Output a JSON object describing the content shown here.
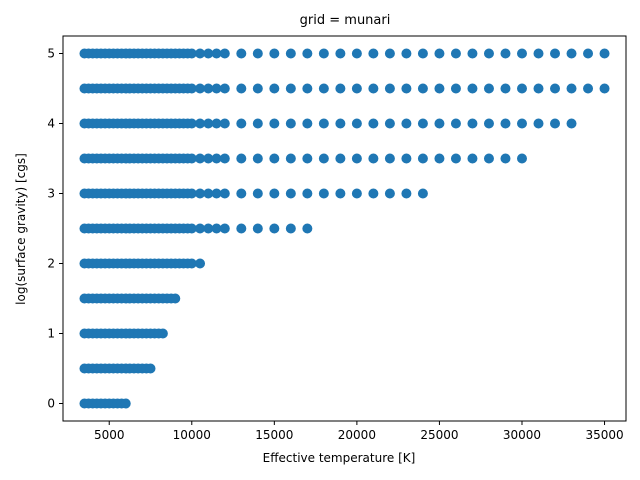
{
  "chart_data": {
    "type": "scatter",
    "title": "grid = munari",
    "xlabel": "Effective temperature [K]",
    "ylabel": "log(surface gravity) [cgs]",
    "xlim": [
      2200,
      36300
    ],
    "ylim": [
      -0.25,
      5.25
    ],
    "xticks": [
      5000,
      10000,
      15000,
      20000,
      25000,
      30000,
      35000
    ],
    "yticks": [
      0,
      1,
      2,
      3,
      4,
      5
    ],
    "grid": false,
    "legend": "none",
    "marker_color": "#1f77b4",
    "series": [
      {
        "points": [
          {
            "logg": 0.0,
            "teff": [
              3500,
              3750,
              4000,
              4250,
              4500,
              4750,
              5000,
              5250,
              5500,
              5750,
              6000
            ]
          },
          {
            "logg": 0.5,
            "teff": [
              3500,
              3750,
              4000,
              4250,
              4500,
              4750,
              5000,
              5250,
              5500,
              5750,
              6000,
              6250,
              6500,
              6750,
              7000,
              7250,
              7500
            ]
          },
          {
            "logg": 1.0,
            "teff": [
              3500,
              3750,
              4000,
              4250,
              4500,
              4750,
              5000,
              5250,
              5500,
              5750,
              6000,
              6250,
              6500,
              6750,
              7000,
              7250,
              7500,
              7750,
              8000,
              8250
            ]
          },
          {
            "logg": 1.5,
            "teff": [
              3500,
              3750,
              4000,
              4250,
              4500,
              4750,
              5000,
              5250,
              5500,
              5750,
              6000,
              6250,
              6500,
              6750,
              7000,
              7250,
              7500,
              7750,
              8000,
              8250,
              8500,
              8750,
              9000
            ]
          },
          {
            "logg": 2.0,
            "teff": [
              3500,
              3750,
              4000,
              4250,
              4500,
              4750,
              5000,
              5250,
              5500,
              5750,
              6000,
              6250,
              6500,
              6750,
              7000,
              7250,
              7500,
              7750,
              8000,
              8250,
              8500,
              8750,
              9000,
              9250,
              9500,
              9750,
              10000,
              10500
            ]
          },
          {
            "logg": 2.5,
            "teff": [
              3500,
              3750,
              4000,
              4250,
              4500,
              4750,
              5000,
              5250,
              5500,
              5750,
              6000,
              6250,
              6500,
              6750,
              7000,
              7250,
              7500,
              7750,
              8000,
              8250,
              8500,
              8750,
              9000,
              9250,
              9500,
              9750,
              10000,
              10500,
              11000,
              11500,
              12000,
              13000,
              14000,
              15000,
              16000,
              17000
            ]
          },
          {
            "logg": 3.0,
            "teff": [
              3500,
              3750,
              4000,
              4250,
              4500,
              4750,
              5000,
              5250,
              5500,
              5750,
              6000,
              6250,
              6500,
              6750,
              7000,
              7250,
              7500,
              7750,
              8000,
              8250,
              8500,
              8750,
              9000,
              9250,
              9500,
              9750,
              10000,
              10500,
              11000,
              11500,
              12000,
              13000,
              14000,
              15000,
              16000,
              17000,
              18000,
              19000,
              20000,
              21000,
              22000,
              23000,
              24000
            ]
          },
          {
            "logg": 3.5,
            "teff": [
              3500,
              3750,
              4000,
              4250,
              4500,
              4750,
              5000,
              5250,
              5500,
              5750,
              6000,
              6250,
              6500,
              6750,
              7000,
              7250,
              7500,
              7750,
              8000,
              8250,
              8500,
              8750,
              9000,
              9250,
              9500,
              9750,
              10000,
              10500,
              11000,
              11500,
              12000,
              13000,
              14000,
              15000,
              16000,
              17000,
              18000,
              19000,
              20000,
              21000,
              22000,
              23000,
              24000,
              25000,
              26000,
              27000,
              28000,
              29000,
              30000
            ]
          },
          {
            "logg": 4.0,
            "teff": [
              3500,
              3750,
              4000,
              4250,
              4500,
              4750,
              5000,
              5250,
              5500,
              5750,
              6000,
              6250,
              6500,
              6750,
              7000,
              7250,
              7500,
              7750,
              8000,
              8250,
              8500,
              8750,
              9000,
              9250,
              9500,
              9750,
              10000,
              10500,
              11000,
              11500,
              12000,
              13000,
              14000,
              15000,
              16000,
              17000,
              18000,
              19000,
              20000,
              21000,
              22000,
              23000,
              24000,
              25000,
              26000,
              27000,
              28000,
              29000,
              30000,
              31000,
              32000,
              33000
            ]
          },
          {
            "logg": 4.5,
            "teff": [
              3500,
              3750,
              4000,
              4250,
              4500,
              4750,
              5000,
              5250,
              5500,
              5750,
              6000,
              6250,
              6500,
              6750,
              7000,
              7250,
              7500,
              7750,
              8000,
              8250,
              8500,
              8750,
              9000,
              9250,
              9500,
              9750,
              10000,
              10500,
              11000,
              11500,
              12000,
              13000,
              14000,
              15000,
              16000,
              17000,
              18000,
              19000,
              20000,
              21000,
              22000,
              23000,
              24000,
              25000,
              26000,
              27000,
              28000,
              29000,
              30000,
              31000,
              32000,
              33000,
              34000,
              35000
            ]
          },
          {
            "logg": 5.0,
            "teff": [
              3500,
              3750,
              4000,
              4250,
              4500,
              4750,
              5000,
              5250,
              5500,
              5750,
              6000,
              6250,
              6500,
              6750,
              7000,
              7250,
              7500,
              7750,
              8000,
              8250,
              8500,
              8750,
              9000,
              9250,
              9500,
              9750,
              10000,
              10500,
              11000,
              11500,
              12000,
              13000,
              14000,
              15000,
              16000,
              17000,
              18000,
              19000,
              20000,
              21000,
              22000,
              23000,
              24000,
              25000,
              26000,
              27000,
              28000,
              29000,
              30000,
              31000,
              32000,
              33000,
              34000,
              35000
            ]
          }
        ]
      }
    ]
  }
}
